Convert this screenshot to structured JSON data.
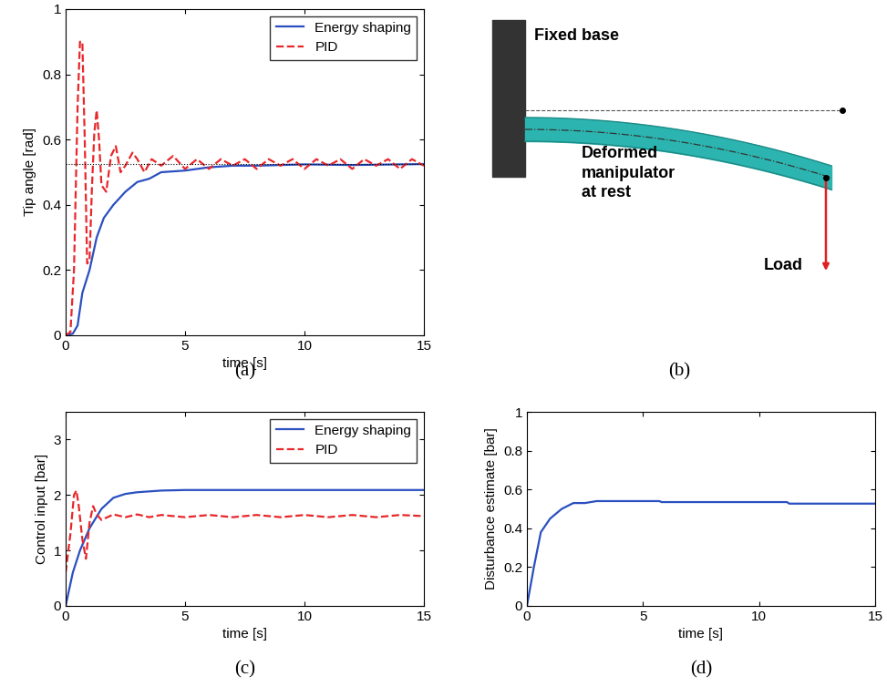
{
  "chart_data": [
    {
      "type": "line",
      "caption": "(a)",
      "xlabel": "time [s]",
      "ylabel": "Tip angle [rad]",
      "xlim": [
        0,
        15
      ],
      "xticks": [
        0,
        5,
        10,
        15
      ],
      "ylim": [
        0,
        1
      ],
      "yticks": [
        0,
        0.2,
        0.4,
        0.6,
        0.8,
        1
      ],
      "legend": "upper right",
      "reference": 0.524,
      "series": [
        {
          "name": "Energy shaping",
          "color": "#2a4fc0",
          "line_style": "solid",
          "x": [
            0,
            0.3,
            0.5,
            0.7,
            1.0,
            1.3,
            1.6,
            2.0,
            2.5,
            3.0,
            3.5,
            4.0,
            5.0,
            6.0,
            7.0,
            8.0,
            10.0,
            12.0,
            15.0
          ],
          "values": [
            0,
            0.005,
            0.03,
            0.13,
            0.2,
            0.3,
            0.36,
            0.4,
            0.44,
            0.47,
            0.48,
            0.5,
            0.505,
            0.515,
            0.52,
            0.52,
            0.524,
            0.522,
            0.525
          ]
        },
        {
          "name": "PID",
          "color": "#e8272b",
          "line_style": "dashed",
          "x": [
            0,
            0.2,
            0.35,
            0.5,
            0.6,
            0.7,
            0.8,
            0.9,
            1.0,
            1.1,
            1.2,
            1.3,
            1.4,
            1.5,
            1.7,
            1.9,
            2.1,
            2.3,
            2.5,
            2.8,
            3.0,
            3.3,
            3.6,
            4.0,
            4.5,
            5.0,
            5.5,
            6.0,
            6.5,
            7.0,
            7.5,
            8.0,
            8.5,
            9.0,
            9.5,
            10.0,
            10.5,
            11.0,
            11.5,
            12.0,
            12.5,
            13.0,
            13.5,
            14.0,
            14.5,
            15.0
          ],
          "values": [
            0,
            0.01,
            0.2,
            0.7,
            0.9,
            0.9,
            0.6,
            0.22,
            0.23,
            0.45,
            0.62,
            0.69,
            0.6,
            0.46,
            0.44,
            0.55,
            0.58,
            0.5,
            0.52,
            0.56,
            0.54,
            0.5,
            0.54,
            0.52,
            0.55,
            0.51,
            0.54,
            0.51,
            0.54,
            0.52,
            0.54,
            0.51,
            0.54,
            0.52,
            0.54,
            0.51,
            0.54,
            0.52,
            0.54,
            0.51,
            0.54,
            0.52,
            0.54,
            0.51,
            0.54,
            0.52
          ]
        }
      ]
    },
    {
      "type": "line",
      "caption": "(c)",
      "xlabel": "time [s]",
      "ylabel": "Control input [bar]",
      "xlim": [
        0,
        15
      ],
      "xticks": [
        0,
        5,
        10,
        15
      ],
      "ylim": [
        0,
        3.5
      ],
      "yticks": [
        0,
        1,
        2,
        3
      ],
      "legend": "upper right",
      "series": [
        {
          "name": "Energy shaping",
          "color": "#2a4fc0",
          "line_style": "solid",
          "x": [
            0,
            0.3,
            0.6,
            1.0,
            1.5,
            2.0,
            2.5,
            3.0,
            4.0,
            5.0,
            15.0
          ],
          "values": [
            0,
            0.6,
            1.0,
            1.4,
            1.75,
            1.95,
            2.02,
            2.05,
            2.08,
            2.09,
            2.09
          ]
        },
        {
          "name": "PID",
          "color": "#e8272b",
          "line_style": "dashed",
          "x": [
            0,
            0.2,
            0.35,
            0.45,
            0.55,
            0.7,
            0.85,
            1.0,
            1.15,
            1.3,
            1.5,
            2.0,
            2.5,
            3.0,
            3.5,
            4.0,
            5.0,
            6.0,
            7.0,
            8.0,
            9.0,
            10.0,
            11.0,
            12.0,
            13.0,
            14.0,
            15.0
          ],
          "values": [
            0.6,
            1.3,
            2.0,
            2.08,
            1.8,
            1.2,
            0.85,
            1.5,
            1.8,
            1.65,
            1.55,
            1.65,
            1.6,
            1.65,
            1.6,
            1.64,
            1.6,
            1.64,
            1.6,
            1.64,
            1.6,
            1.64,
            1.6,
            1.64,
            1.6,
            1.64,
            1.62
          ]
        }
      ]
    },
    {
      "type": "line",
      "caption": "(d)",
      "xlabel": "time [s]",
      "ylabel": "Disturbance estimate [bar]",
      "xlim": [
        0,
        15
      ],
      "xticks": [
        0,
        5,
        10,
        15
      ],
      "ylim": [
        0,
        1
      ],
      "yticks": [
        0,
        0.2,
        0.4,
        0.6,
        0.8,
        1
      ],
      "series": [
        {
          "color": "#2a4fc0",
          "line_style": "solid",
          "x": [
            0,
            0.3,
            0.6,
            1.0,
            1.5,
            2.0,
            2.5,
            3.0,
            3.5,
            5.7,
            5.8,
            11.2,
            11.3,
            15.0
          ],
          "values": [
            0,
            0.2,
            0.38,
            0.45,
            0.5,
            0.53,
            0.53,
            0.54,
            0.54,
            0.54,
            0.535,
            0.535,
            0.527,
            0.527
          ]
        }
      ]
    }
  ],
  "diagram": {
    "caption": "(b)",
    "base": "Fixed base",
    "manipulator": "Deformed\nmanipulator\nat rest",
    "load": "Load"
  }
}
